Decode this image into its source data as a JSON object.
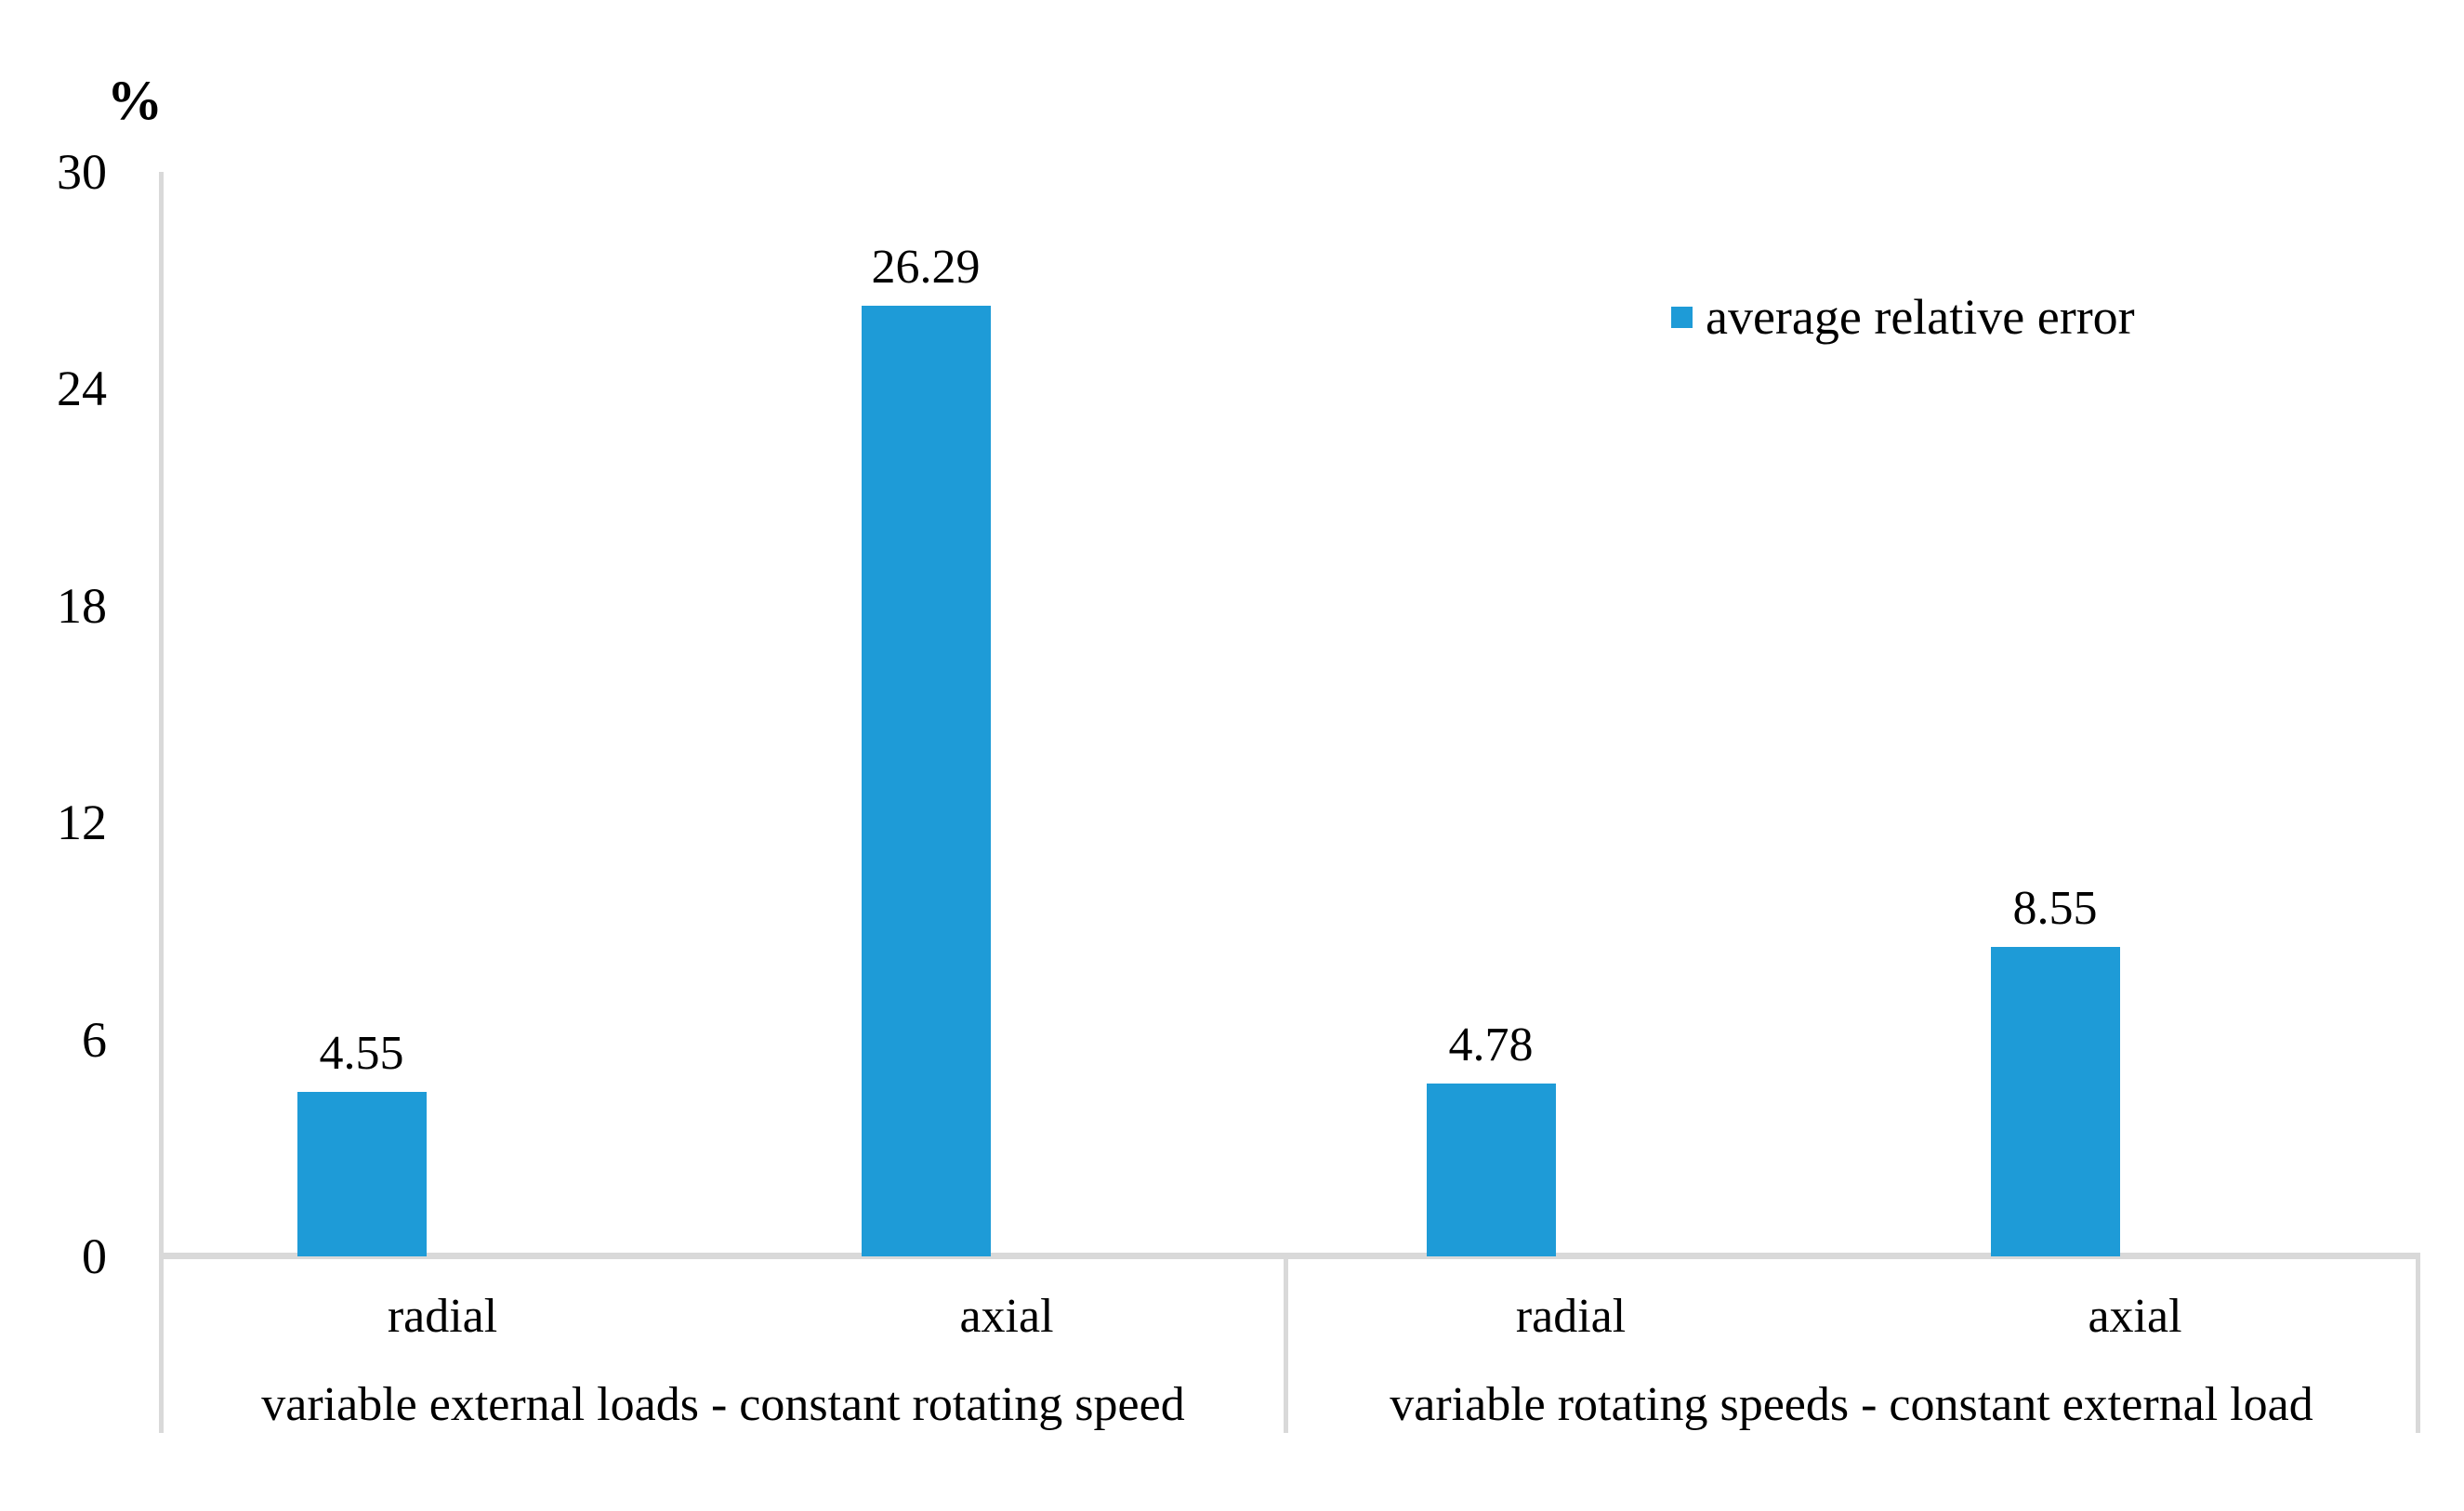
{
  "chart_data": {
    "type": "bar",
    "unit_label": "%",
    "ylim": [
      0,
      30
    ],
    "yticks": [
      0,
      6,
      12,
      18,
      24,
      30
    ],
    "grid": false,
    "legend_position": "top-right",
    "series": [
      {
        "name": "average relative error",
        "color": "#1e9bd7"
      }
    ],
    "groups": [
      {
        "label": "variable external loads - constant rotating speed",
        "categories": [
          "radial",
          "axial"
        ],
        "values": [
          4.55,
          26.29
        ],
        "value_labels": [
          "4.55",
          "26.29"
        ]
      },
      {
        "label": "variable rotating speeds - constant external load",
        "categories": [
          "radial",
          "axial"
        ],
        "values": [
          4.78,
          8.55
        ],
        "value_labels": [
          "4.78",
          "8.55"
        ]
      }
    ],
    "colors": {
      "bar": "#1e9bd7",
      "axis": "#d9d9d9",
      "text": "#000000"
    }
  },
  "legend": {
    "label": "average relative error"
  }
}
